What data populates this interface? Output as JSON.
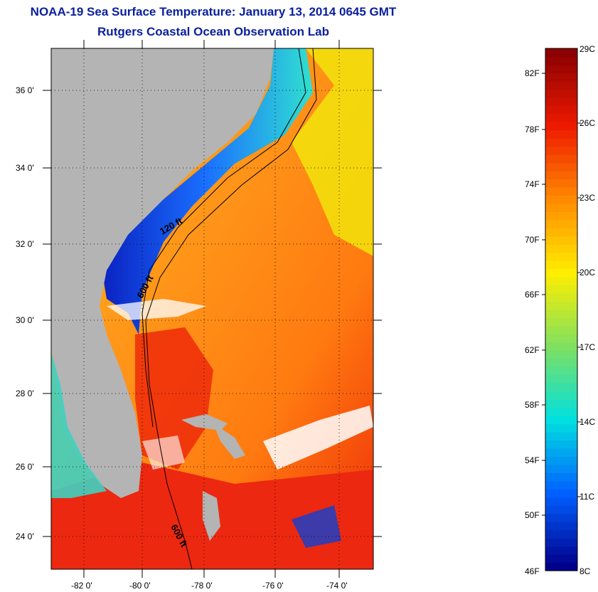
{
  "header": {
    "title": "NOAA-19 Sea Surface Temperature:  January 13, 2014 0645 GMT",
    "subtitle": "Rutgers Coastal Ocean Observation Lab"
  },
  "axes": {
    "lat_labels": [
      "36 0'",
      "34 0'",
      "32 0'",
      "30 0'",
      "28 0'",
      "26 0'",
      "24 0'"
    ],
    "lon_labels": [
      "-82 0'",
      "-80 0'",
      "-78 0'",
      "-76 0'",
      "-74 0'"
    ]
  },
  "contours": {
    "label_120": "120 ft",
    "label_600a": "600 ft",
    "label_600b": "600 ft"
  },
  "colorbar": {
    "celsius": [
      "29C",
      "26C",
      "23C",
      "20C",
      "17C",
      "14C",
      "11C",
      "8C"
    ],
    "fahrenheit": [
      "82F",
      "78F",
      "74F",
      "70F",
      "66F",
      "62F",
      "58F",
      "54F",
      "50F",
      "46F"
    ],
    "range_c": [
      8,
      29
    ],
    "colors": {
      "cold": "#00008b",
      "cool": "#0060ff",
      "cyan": "#00e0e0",
      "green": "#7fe060",
      "yellow": "#ffee00",
      "orange": "#ff8a00",
      "red": "#ee1a00",
      "hot": "#8b0000"
    }
  },
  "map_colors": {
    "land": "#b4b4b4",
    "ocean_warm": "#ff8a1a",
    "ocean_hot": "#ef2a0a",
    "ocean_yellow": "#f2e20a",
    "coastal_cold": "#1030d0",
    "cloud": "#ffffff"
  }
}
